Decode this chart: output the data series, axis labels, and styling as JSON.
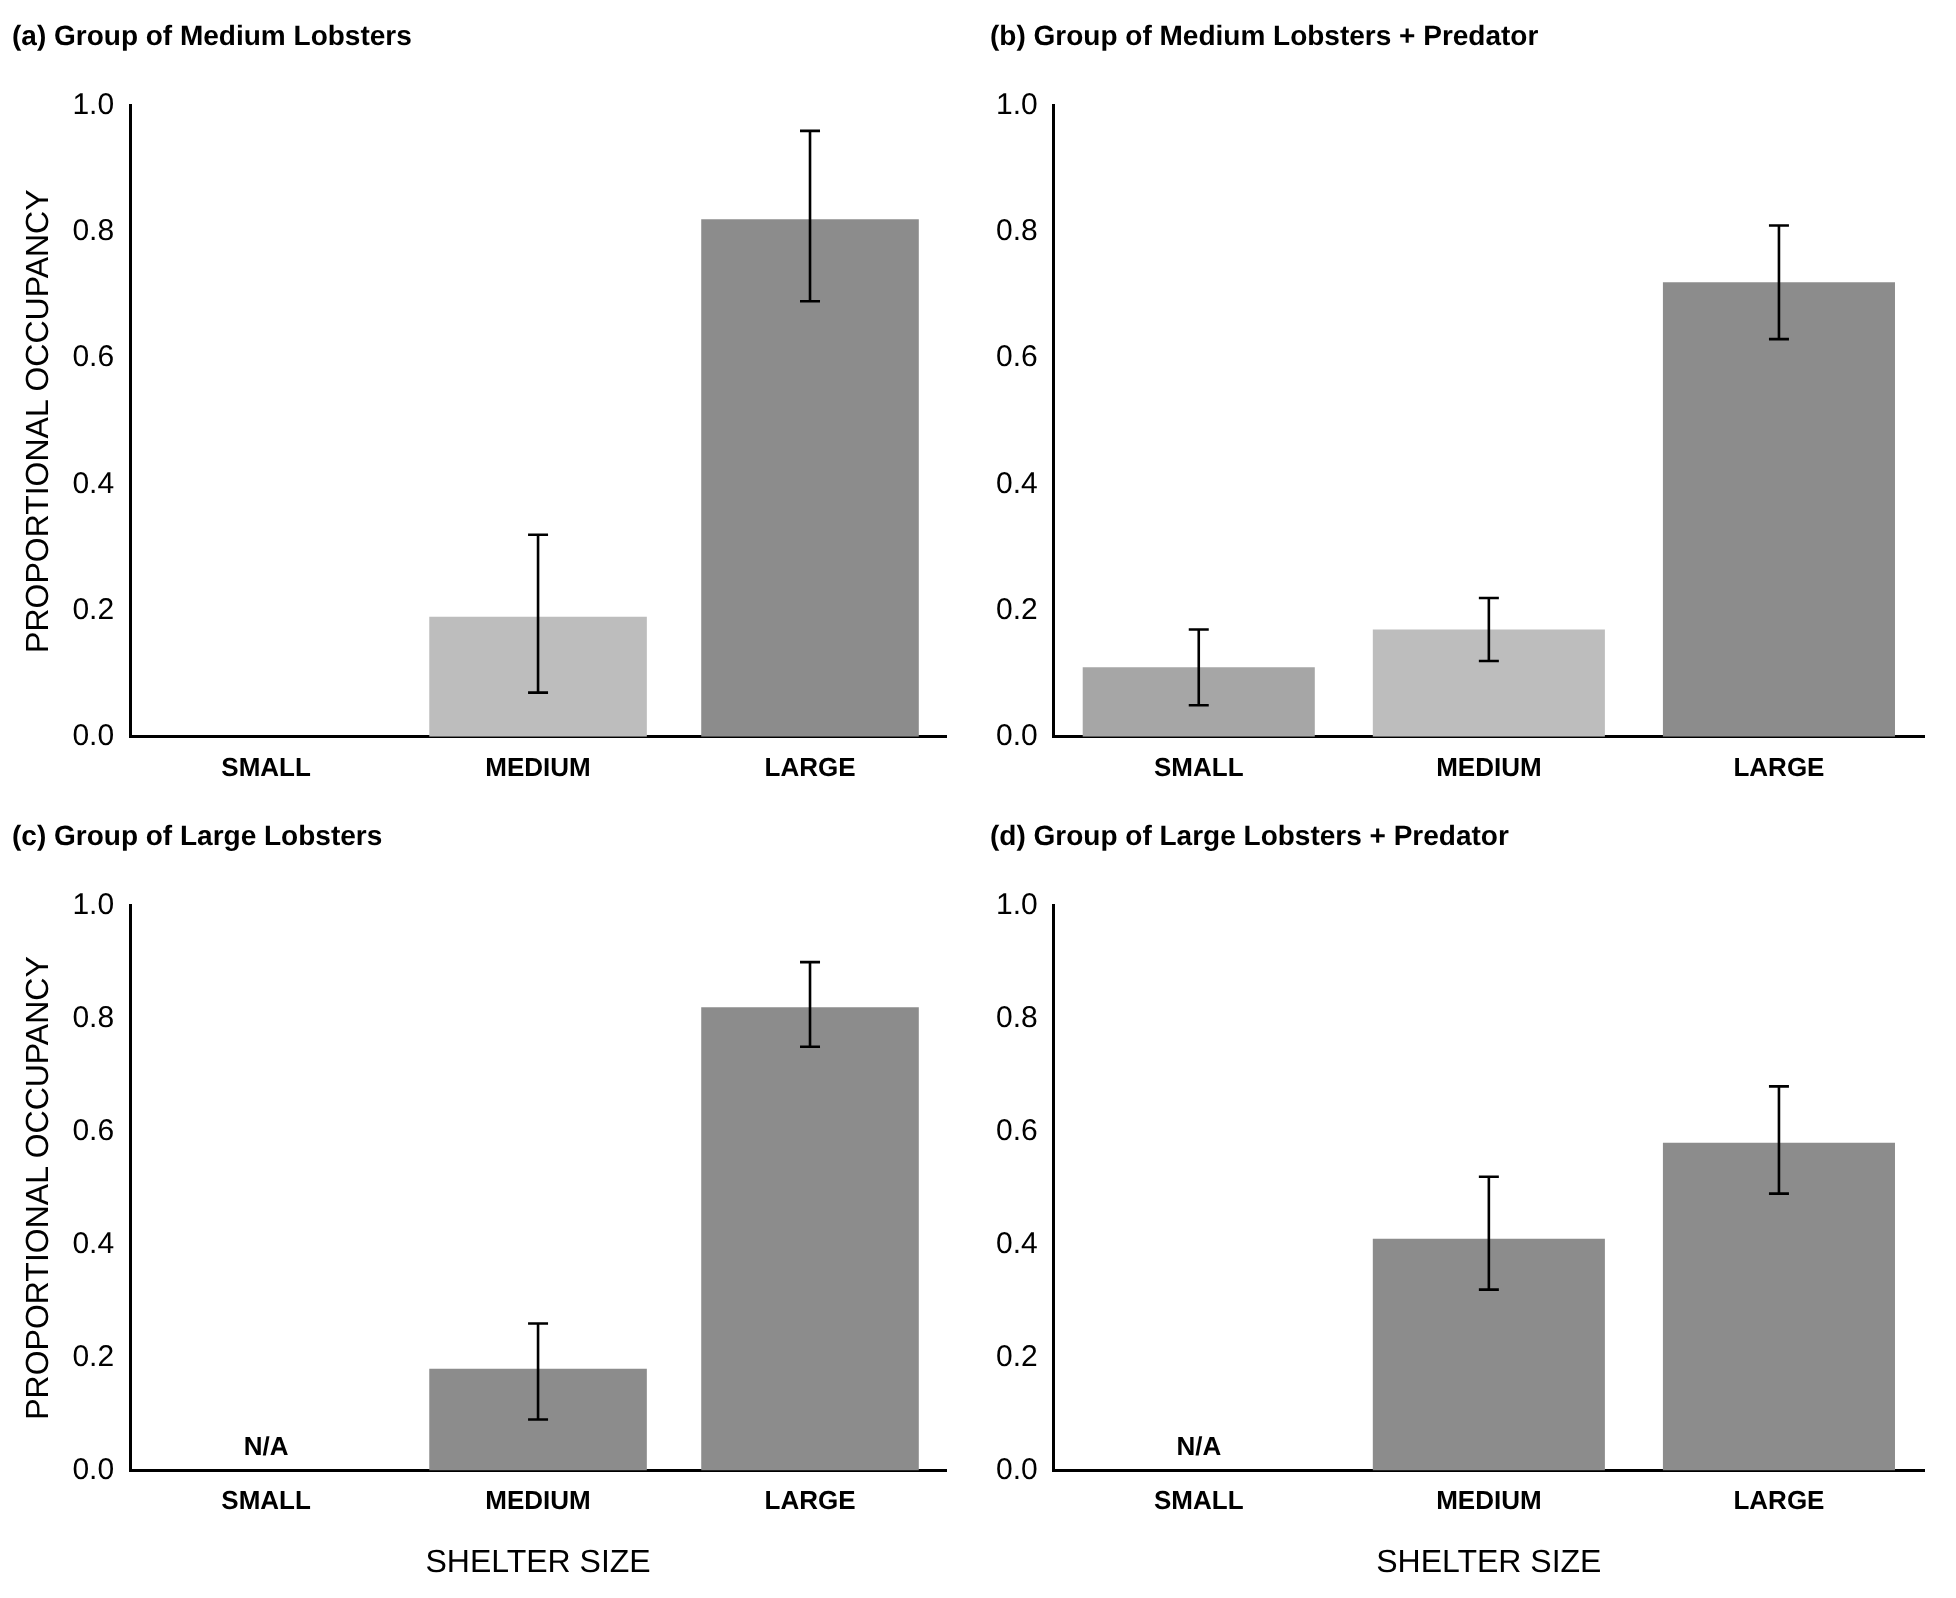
{
  "chart_data": [
    {
      "type": "bar",
      "title": "(a) Group of Medium Lobsters",
      "ylabel": "PROPORTIONAL OCCUPANCY",
      "categories": [
        "SMALL",
        "MEDIUM",
        "LARGE"
      ],
      "values": [
        0,
        0.19,
        0.82
      ],
      "errors": [
        null,
        [
          0.07,
          0.32
        ],
        [
          0.69,
          0.96
        ]
      ],
      "colors": [
        "#9a9a9a",
        "#bdbdbd",
        "#8c8c8c"
      ],
      "ylim": [
        0,
        1
      ],
      "yticks": [
        {
          "value": 0,
          "label": "0.0"
        },
        {
          "value": 0.2,
          "label": "0.2"
        },
        {
          "value": 0.4,
          "label": "0.4"
        },
        {
          "value": 0.6,
          "label": "0.6"
        },
        {
          "value": 0.8,
          "label": "0.8"
        },
        {
          "value": 1,
          "label": "1.0"
        }
      ],
      "grid": false,
      "legend": false
    },
    {
      "type": "bar",
      "title": "(b) Group of Medium Lobsters + Predator",
      "categories": [
        "SMALL",
        "MEDIUM",
        "LARGE"
      ],
      "values": [
        0.11,
        0.17,
        0.72
      ],
      "errors": [
        [
          0.05,
          0.17
        ],
        [
          0.12,
          0.22
        ],
        [
          0.63,
          0.81
        ]
      ],
      "colors": [
        "#a6a6a6",
        "#bdbdbd",
        "#8c8c8c"
      ],
      "ylim": [
        0,
        1
      ],
      "yticks": [
        {
          "value": 0,
          "label": "0.0"
        },
        {
          "value": 0.2,
          "label": "0.2"
        },
        {
          "value": 0.4,
          "label": "0.4"
        },
        {
          "value": 0.6,
          "label": "0.6"
        },
        {
          "value": 0.8,
          "label": "0.8"
        },
        {
          "value": 1,
          "label": "1.0"
        }
      ],
      "grid": false,
      "legend": false
    },
    {
      "type": "bar",
      "title": "(c) Group of Large Lobsters",
      "ylabel": "PROPORTIONAL OCCUPANCY",
      "xlabel": "SHELTER SIZE",
      "categories": [
        "SMALL",
        "MEDIUM",
        "LARGE"
      ],
      "values": [
        null,
        0.18,
        0.82
      ],
      "value_labels": [
        "N/A",
        null,
        null
      ],
      "errors": [
        null,
        [
          0.09,
          0.26
        ],
        [
          0.75,
          0.9
        ]
      ],
      "colors": [
        "#8c8c8c",
        "#8c8c8c",
        "#8c8c8c"
      ],
      "ylim": [
        0,
        1
      ],
      "yticks": [
        {
          "value": 0,
          "label": "0.0"
        },
        {
          "value": 0.2,
          "label": "0.2"
        },
        {
          "value": 0.4,
          "label": "0.4"
        },
        {
          "value": 0.6,
          "label": "0.6"
        },
        {
          "value": 0.8,
          "label": "0.8"
        },
        {
          "value": 1,
          "label": "1.0"
        }
      ],
      "grid": false,
      "legend": false
    },
    {
      "type": "bar",
      "title": "(d) Group of Large Lobsters + Predator",
      "xlabel": "SHELTER SIZE",
      "categories": [
        "SMALL",
        "MEDIUM",
        "LARGE"
      ],
      "values": [
        null,
        0.41,
        0.58
      ],
      "value_labels": [
        "N/A",
        null,
        null
      ],
      "errors": [
        null,
        [
          0.32,
          0.52
        ],
        [
          0.49,
          0.68
        ]
      ],
      "colors": [
        "#8c8c8c",
        "#8c8c8c",
        "#8c8c8c"
      ],
      "ylim": [
        0,
        1
      ],
      "yticks": [
        {
          "value": 0,
          "label": "0.0"
        },
        {
          "value": 0.2,
          "label": "0.2"
        },
        {
          "value": 0.4,
          "label": "0.4"
        },
        {
          "value": 0.6,
          "label": "0.6"
        },
        {
          "value": 0.8,
          "label": "0.8"
        },
        {
          "value": 1,
          "label": "1.0"
        }
      ],
      "grid": false,
      "legend": false
    }
  ]
}
